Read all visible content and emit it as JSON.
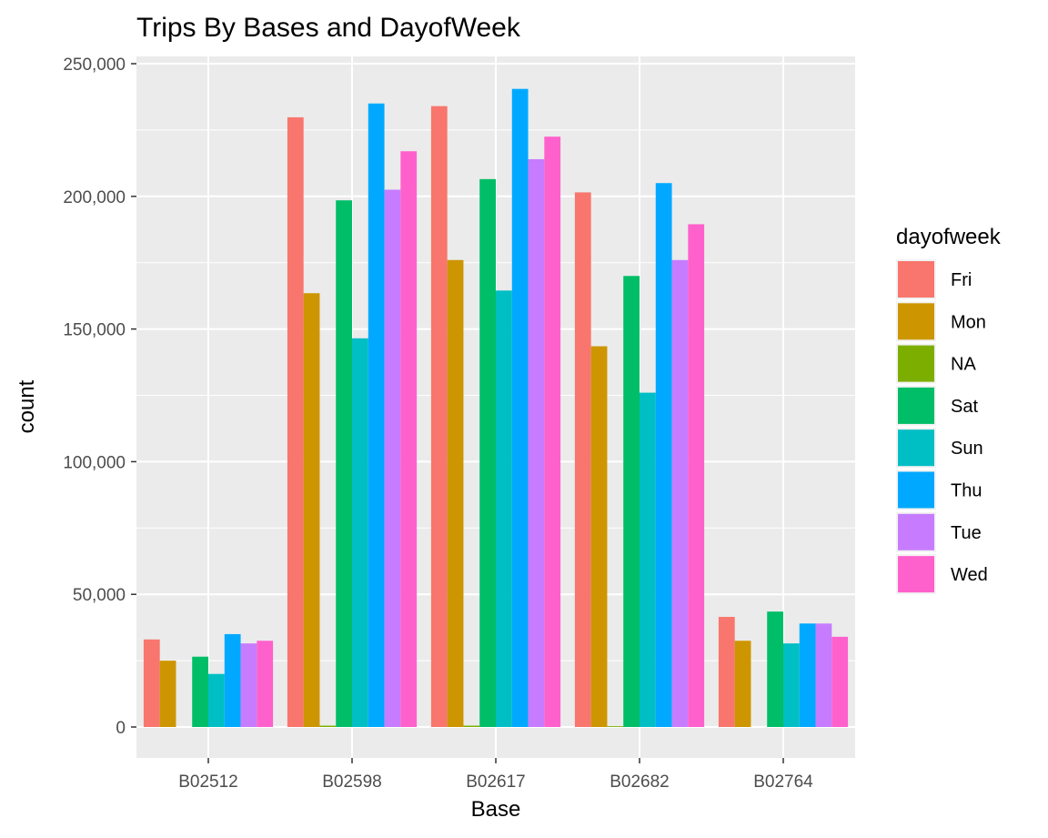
{
  "chart_data": {
    "type": "bar",
    "title": "Trips By Bases and DayofWeek",
    "xlabel": "Base",
    "ylabel": "count",
    "categories": [
      "B02512",
      "B02598",
      "B02617",
      "B02682",
      "B02764"
    ],
    "ylim": [
      -10000,
      250000
    ],
    "yticks": [
      0,
      50000,
      100000,
      150000,
      200000,
      250000
    ],
    "ytick_labels": [
      "0",
      "50,000",
      "100,000",
      "150,000",
      "200,000",
      "250,000"
    ],
    "grid": true,
    "legend_title": "dayofweek",
    "legend_position": "right",
    "series": [
      {
        "name": "Fri",
        "color": "#F8766D",
        "values": [
          33000,
          229800,
          234000,
          201500,
          41500
        ]
      },
      {
        "name": "Mon",
        "color": "#CD9600",
        "values": [
          25000,
          163500,
          176000,
          143500,
          32500
        ]
      },
      {
        "name": "NA",
        "color": "#7CAE00",
        "values": [
          0,
          500,
          500,
          300,
          0
        ]
      },
      {
        "name": "Sat",
        "color": "#00BE67",
        "values": [
          26500,
          198500,
          206500,
          170000,
          43500
        ]
      },
      {
        "name": "Sun",
        "color": "#00BFC4",
        "values": [
          20000,
          146500,
          164500,
          126000,
          31500
        ]
      },
      {
        "name": "Thu",
        "color": "#00A9FF",
        "values": [
          35000,
          235000,
          240500,
          205000,
          39000
        ]
      },
      {
        "name": "Tue",
        "color": "#C77CFF",
        "values": [
          31500,
          202500,
          214000,
          176000,
          39000
        ]
      },
      {
        "name": "Wed",
        "color": "#FF61CC",
        "values": [
          32500,
          217000,
          222500,
          189500,
          34000
        ]
      }
    ]
  }
}
